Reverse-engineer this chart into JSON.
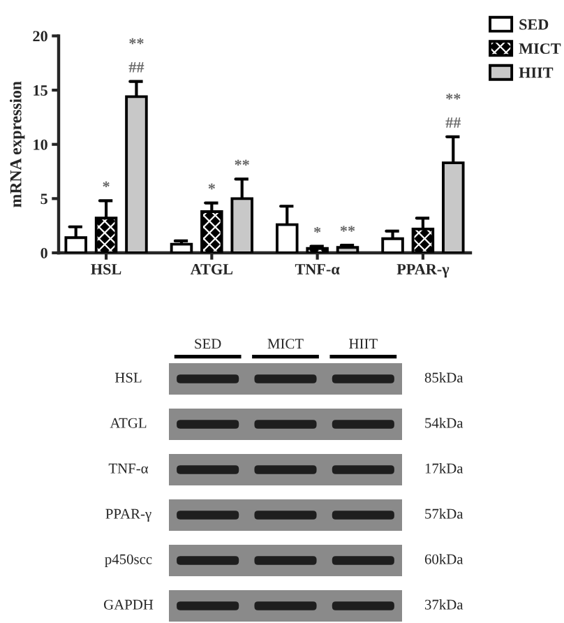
{
  "chart_data": [
    {
      "type": "bar",
      "ylabel": "mRNA expression",
      "categories": [
        "HSL",
        "ATGL",
        "TNF-α",
        "PPAR-γ"
      ],
      "series": [
        {
          "name": "SED",
          "color": "#ffffff",
          "values": [
            1.4,
            0.8,
            2.6,
            1.3
          ],
          "errors": [
            [
              1.4,
              2.4
            ],
            [
              0.8,
              1.1
            ],
            [
              2.6,
              4.3
            ],
            [
              1.3,
              2.0
            ]
          ]
        },
        {
          "name": "MICT",
          "color": "#000000",
          "values": [
            3.2,
            3.8,
            0.4,
            2.2
          ],
          "errors": [
            [
              3.2,
              4.8
            ],
            [
              3.8,
              4.6
            ],
            [
              0.4,
              0.6
            ],
            [
              2.2,
              3.2
            ]
          ],
          "value_labels": [
            "*",
            "*",
            "*",
            null
          ]
        },
        {
          "name": "HIIT",
          "color": "#c8c8c8",
          "values": [
            14.4,
            5.0,
            0.5,
            8.3
          ],
          "errors": [
            [
              14.4,
              15.8
            ],
            [
              5.0,
              6.8
            ],
            [
              0.5,
              0.7
            ],
            [
              8.3,
              10.7
            ]
          ],
          "value_labels": [
            "**\n##",
            "**",
            "**",
            "**\n##"
          ]
        }
      ],
      "ylim": [
        0,
        20
      ],
      "yticks": [
        0,
        5,
        10,
        15,
        20
      ],
      "legend": "top right"
    },
    {
      "type": "other",
      "categories": [
        "SED",
        "MICT",
        "HIIT"
      ],
      "annotations": [
        "HSL",
        "85kDa",
        "ATGL",
        "54kDa",
        "TNF-α",
        "17kDa",
        "PPAR-γ",
        "57kDa",
        "p450scc",
        "60kDa",
        "GAPDH",
        "37kDa"
      ]
    }
  ]
}
